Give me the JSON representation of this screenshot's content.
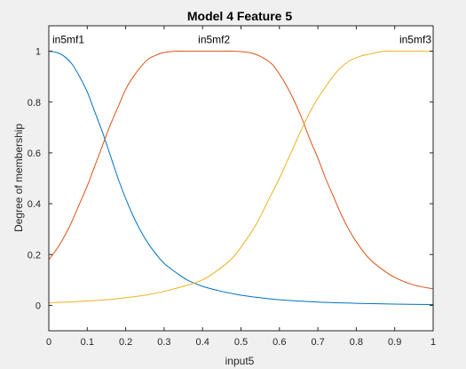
{
  "chart_data": {
    "type": "line",
    "title": "Model 4 Feature 5",
    "xlabel": "input5",
    "ylabel": "Degree of membership",
    "xlim": [
      0,
      1
    ],
    "ylim": [
      -0.1,
      1.1
    ],
    "xticks": [
      0,
      0.1,
      0.2,
      0.3,
      0.4,
      0.5,
      0.6,
      0.7,
      0.8,
      0.9,
      1
    ],
    "xtick_labels": [
      "0",
      "0.1",
      "0.2",
      "0.3",
      "0.4",
      "0.5",
      "0.6",
      "0.7",
      "0.8",
      "0.9",
      "1"
    ],
    "yticks": [
      0,
      0.2,
      0.4,
      0.6,
      0.8,
      1
    ],
    "ytick_labels": [
      "0",
      "0.2",
      "0.4",
      "0.6",
      "0.8",
      "1"
    ],
    "grid": false,
    "series": [
      {
        "name": "in5mf1",
        "color": "#0072bd",
        "x": [
          0,
          0.02,
          0.04,
          0.06,
          0.08,
          0.1,
          0.12,
          0.14,
          0.16,
          0.18,
          0.2,
          0.22,
          0.24,
          0.26,
          0.28,
          0.3,
          0.33,
          0.36,
          0.4,
          0.45,
          0.5,
          0.55,
          0.6,
          0.7,
          0.8,
          0.9,
          1.0
        ],
        "y": [
          1.0,
          0.995,
          0.98,
          0.95,
          0.9,
          0.84,
          0.76,
          0.68,
          0.59,
          0.5,
          0.42,
          0.35,
          0.29,
          0.24,
          0.2,
          0.165,
          0.13,
          0.1,
          0.075,
          0.055,
          0.04,
          0.03,
          0.022,
          0.013,
          0.008,
          0.005,
          0.003
        ]
      },
      {
        "name": "in5mf2",
        "color": "#d95319",
        "x": [
          0,
          0.02,
          0.04,
          0.06,
          0.08,
          0.1,
          0.12,
          0.14,
          0.16,
          0.18,
          0.2,
          0.22,
          0.24,
          0.26,
          0.28,
          0.3,
          0.33,
          0.36,
          0.4,
          0.45,
          0.48,
          0.52,
          0.55,
          0.58,
          0.6,
          0.62,
          0.64,
          0.66,
          0.68,
          0.7,
          0.72,
          0.74,
          0.76,
          0.78,
          0.8,
          0.83,
          0.86,
          0.9,
          0.95,
          1.0
        ],
        "y": [
          0.18,
          0.22,
          0.27,
          0.33,
          0.4,
          0.47,
          0.55,
          0.63,
          0.71,
          0.78,
          0.85,
          0.9,
          0.94,
          0.97,
          0.985,
          0.995,
          1.0,
          1.0,
          1.0,
          1.0,
          1.0,
          0.995,
          0.98,
          0.95,
          0.91,
          0.86,
          0.8,
          0.73,
          0.65,
          0.58,
          0.5,
          0.43,
          0.36,
          0.3,
          0.25,
          0.19,
          0.15,
          0.11,
          0.08,
          0.065
        ]
      },
      {
        "name": "in5mf3",
        "color": "#edb120",
        "x": [
          0,
          0.05,
          0.1,
          0.15,
          0.2,
          0.25,
          0.3,
          0.35,
          0.4,
          0.45,
          0.48,
          0.51,
          0.54,
          0.57,
          0.6,
          0.63,
          0.66,
          0.69,
          0.72,
          0.75,
          0.78,
          0.81,
          0.84,
          0.87,
          0.9,
          0.95,
          1.0
        ],
        "y": [
          0.01,
          0.013,
          0.017,
          0.022,
          0.03,
          0.04,
          0.055,
          0.075,
          0.1,
          0.15,
          0.19,
          0.25,
          0.32,
          0.41,
          0.5,
          0.6,
          0.7,
          0.79,
          0.86,
          0.92,
          0.96,
          0.98,
          0.99,
          1.0,
          1.0,
          1.0,
          1.0
        ]
      }
    ],
    "mf_labels": [
      {
        "text": "in5mf1",
        "x": 0.0,
        "anchor": "start"
      },
      {
        "text": "in5mf2",
        "x": 0.43,
        "anchor": "middle"
      },
      {
        "text": "in5mf3",
        "x": 1.0,
        "anchor": "end"
      }
    ]
  }
}
